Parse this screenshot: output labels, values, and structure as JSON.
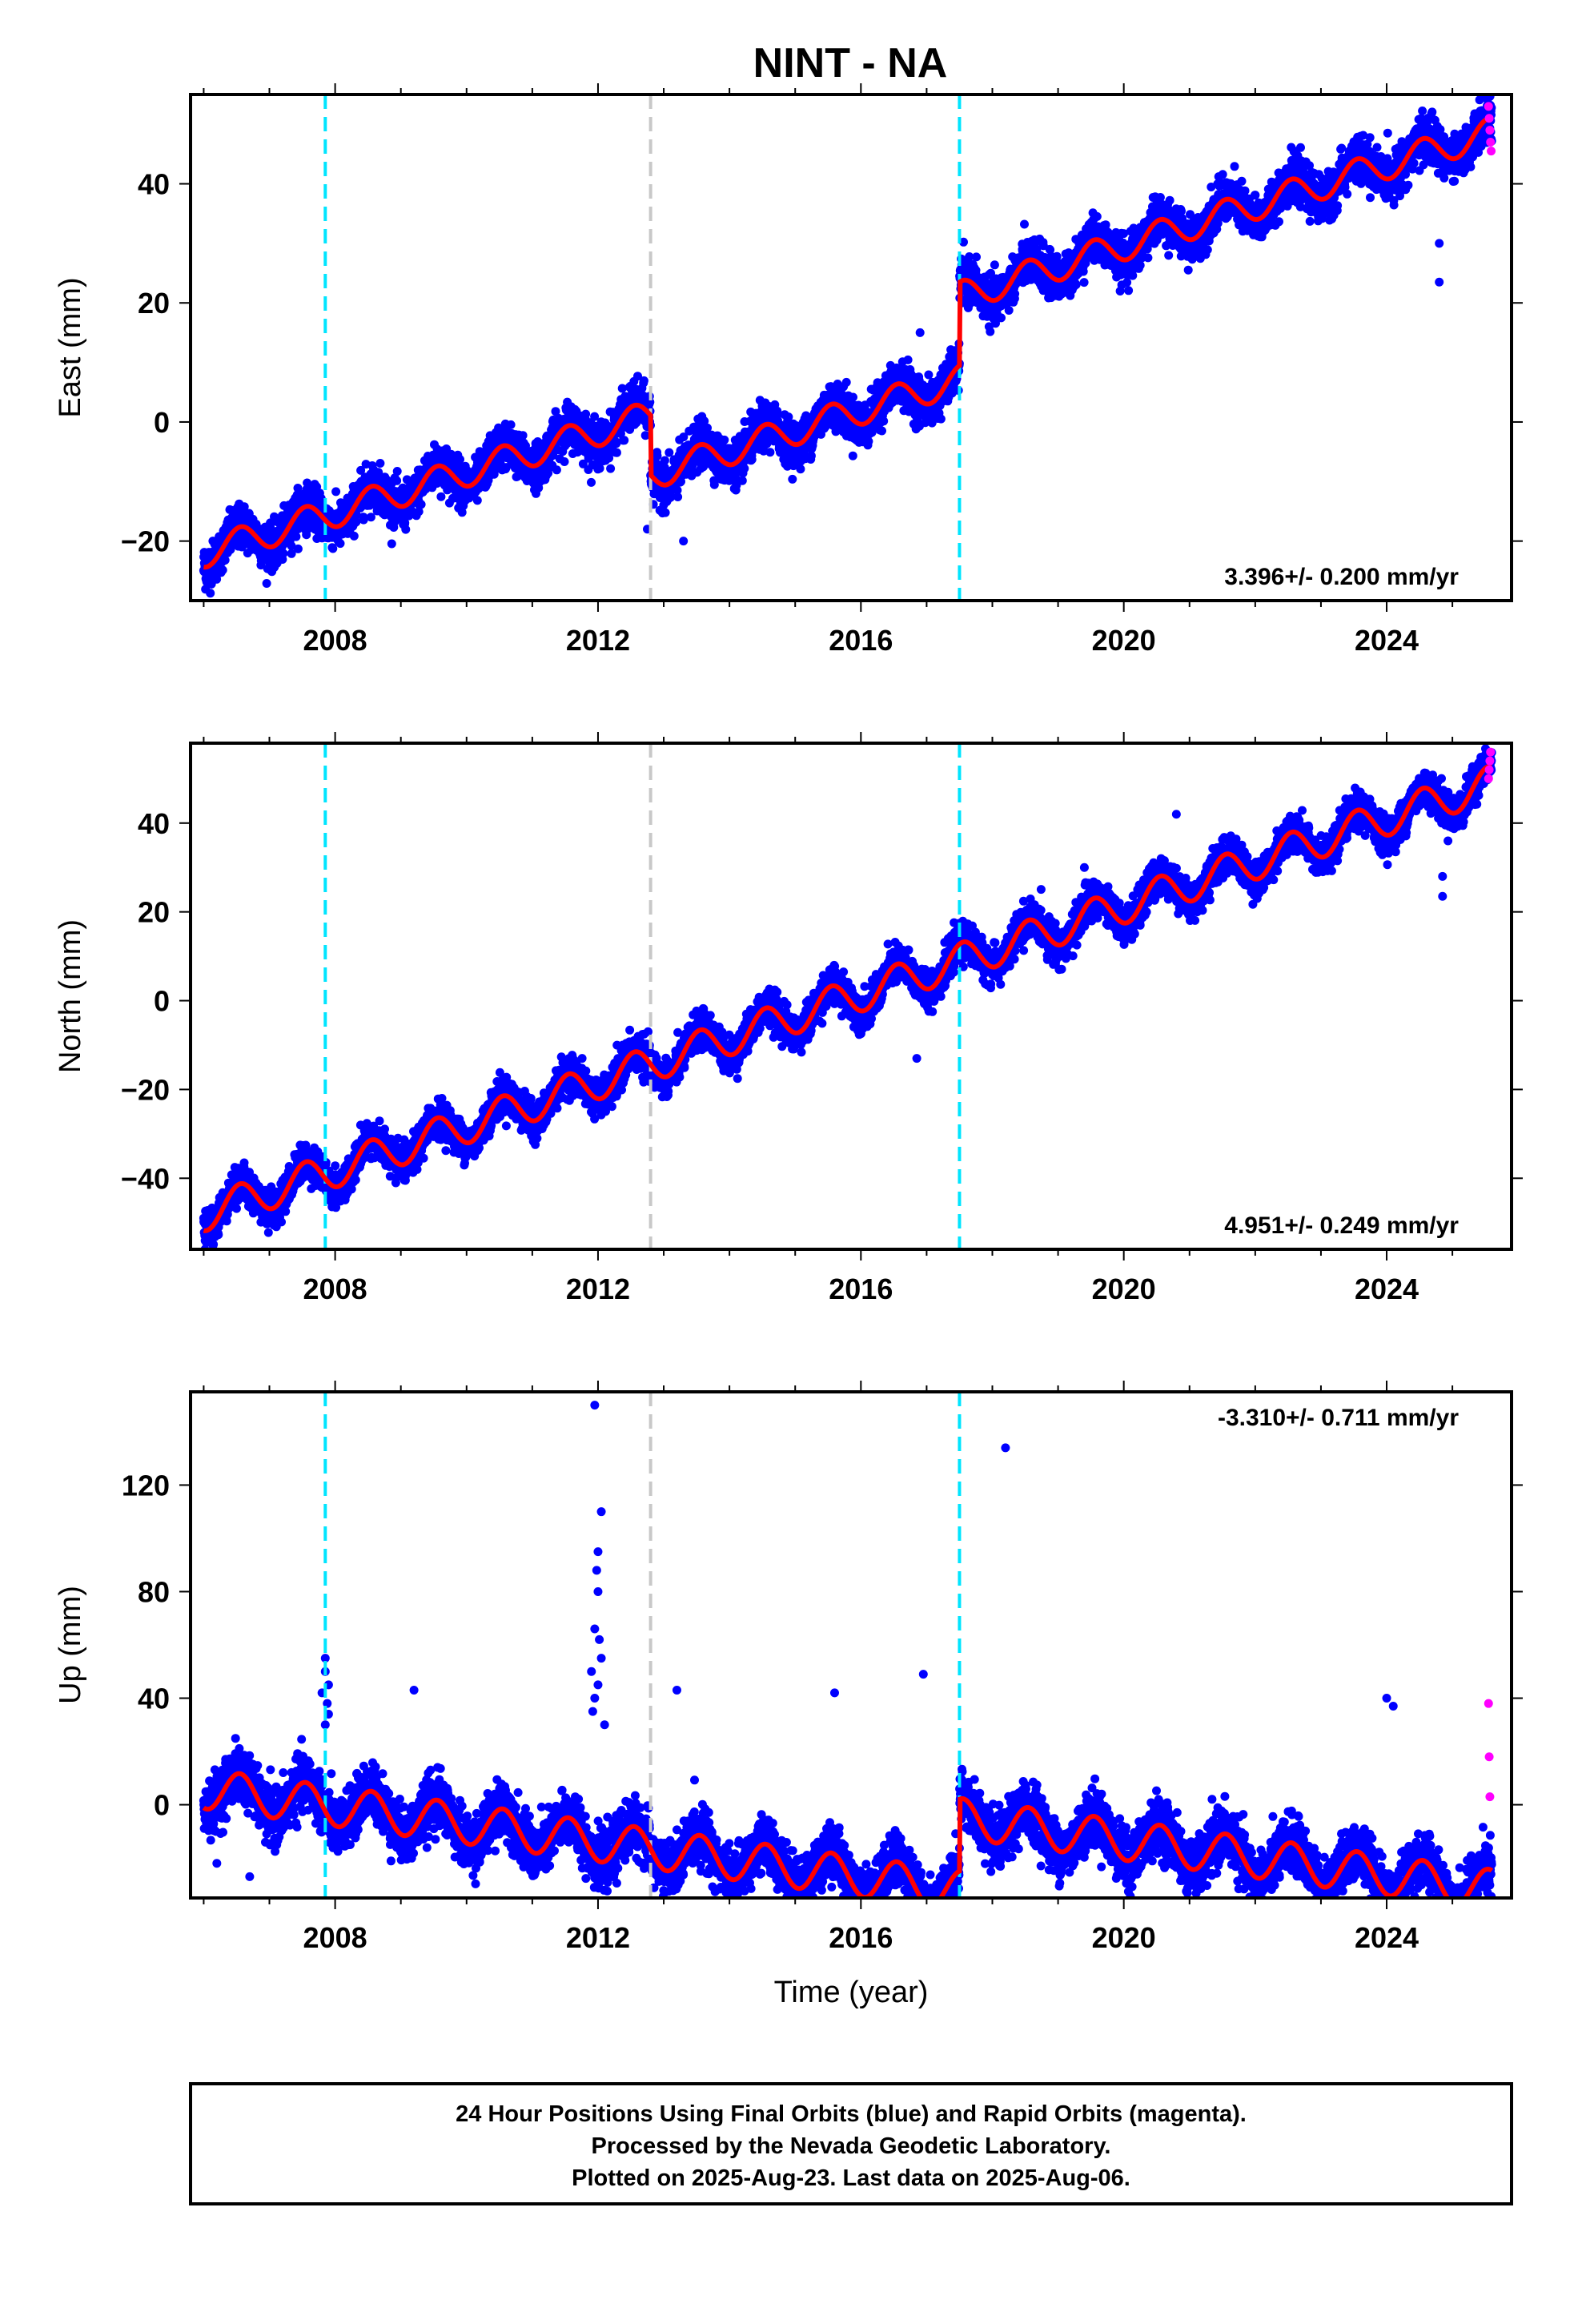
{
  "title": "NINT - NA",
  "footer": {
    "lines": [
      "24 Hour Positions Using Final Orbits (blue) and Rapid Orbits (magenta).",
      "Processed by the Nevada Geodetic Laboratory.",
      "Plotted on 2025-Aug-23. Last data on 2025-Aug-06."
    ]
  },
  "colors": {
    "final_orbits": "#0000ff",
    "rapid_orbits": "#ff00ff",
    "model_fit": "#ff0000",
    "equipment_change": "#00e5ff",
    "earthquake": "#c8c8c8"
  },
  "chart_data": [
    {
      "type": "scatter",
      "component": "east",
      "ylabel": "East (mm)",
      "xlabel": "",
      "xlim": [
        2005.8,
        2025.9
      ],
      "ylim": [
        -30,
        55
      ],
      "xticks": [
        2008,
        2012,
        2016,
        2020,
        2024
      ],
      "yticks": [
        -20,
        0,
        20,
        40
      ],
      "rate_label": "3.396+/- 0.200 mm/yr",
      "rate_position": "bottom-right",
      "vlines_cyan": [
        2007.85,
        2017.5
      ],
      "vlines_gray": [
        2012.8
      ],
      "model": {
        "t_start": 2006.0,
        "t_end": 2025.6,
        "rate": 3.4,
        "y_at_start": -22.0,
        "annual_amp": 2.5,
        "offsets": [
          {
            "t": 2012.8,
            "dy": -10.0
          },
          {
            "t": 2017.5,
            "dy": 14.0
          }
        ]
      },
      "scatter_sigma": 1.8,
      "outliers": [
        [
          2012.75,
          -18.0
        ],
        [
          2013.3,
          -20.0
        ],
        [
          2024.8,
          23.5
        ],
        [
          2024.8,
          30.0
        ],
        [
          2016.9,
          15.0
        ]
      ],
      "rapid_points": [
        [
          2025.55,
          53.0
        ],
        [
          2025.56,
          51.0
        ],
        [
          2025.57,
          49.0
        ],
        [
          2025.58,
          47.0
        ],
        [
          2025.59,
          45.5
        ]
      ],
      "grid": false
    },
    {
      "type": "scatter",
      "component": "north",
      "ylabel": "North (mm)",
      "xlabel": "",
      "xlim": [
        2005.8,
        2025.9
      ],
      "ylim": [
        -56,
        58
      ],
      "xticks": [
        2008,
        2012,
        2016,
        2020,
        2024
      ],
      "yticks": [
        -40,
        -20,
        0,
        20,
        40
      ],
      "rate_label": "4.951+/- 0.249 mm/yr",
      "rate_position": "bottom-right",
      "vlines_cyan": [
        2007.85,
        2017.5
      ],
      "vlines_gray": [
        2012.8
      ],
      "model": {
        "t_start": 2006.0,
        "t_end": 2025.6,
        "rate": 4.95,
        "y_at_start": -48.0,
        "annual_amp": 4.0,
        "offsets": []
      },
      "scatter_sigma": 2.0,
      "outliers": [
        [
          2016.85,
          -13.0
        ],
        [
          2019.4,
          30.0
        ],
        [
          2020.8,
          42.0
        ],
        [
          2024.85,
          23.5
        ],
        [
          2024.85,
          28.0
        ]
      ],
      "rapid_points": [
        [
          2025.55,
          50.0
        ],
        [
          2025.56,
          52.0
        ],
        [
          2025.57,
          54.0
        ],
        [
          2025.58,
          56.0
        ]
      ],
      "grid": false
    },
    {
      "type": "scatter",
      "component": "up",
      "ylabel": "Up (mm)",
      "xlabel": "Time (year)",
      "xlim": [
        2005.8,
        2025.9
      ],
      "ylim": [
        -35,
        155
      ],
      "xticks": [
        2008,
        2012,
        2016,
        2020,
        2024
      ],
      "yticks": [
        0,
        40,
        80,
        120
      ],
      "rate_label": "-3.310+/- 0.711 mm/yr",
      "rate_position": "top-right",
      "vlines_cyan": [
        2007.85,
        2017.5
      ],
      "vlines_gray": [
        2012.8
      ],
      "model": {
        "t_start": 2006.0,
        "t_end": 2025.6,
        "rate": -3.31,
        "y_at_start": 6.0,
        "annual_amp": 7.5,
        "offsets": [
          {
            "t": 2017.5,
            "dy": 27.0
          }
        ]
      },
      "scatter_sigma": 5.0,
      "outliers": [
        [
          2011.95,
          150.0
        ],
        [
          2018.2,
          134.0
        ],
        [
          2012.05,
          110.0
        ],
        [
          2012.0,
          95.0
        ],
        [
          2011.98,
          88.0
        ],
        [
          2012.0,
          80.0
        ],
        [
          2011.95,
          66.0
        ],
        [
          2012.02,
          62.0
        ],
        [
          2012.05,
          55.0
        ],
        [
          2011.9,
          50.0
        ],
        [
          2012.0,
          45.0
        ],
        [
          2011.95,
          40.0
        ],
        [
          2011.92,
          35.0
        ],
        [
          2012.1,
          30.0
        ],
        [
          2007.85,
          55.0
        ],
        [
          2007.85,
          50.0
        ],
        [
          2007.9,
          45.0
        ],
        [
          2007.8,
          42.0
        ],
        [
          2007.88,
          38.0
        ],
        [
          2007.9,
          34.0
        ],
        [
          2007.85,
          30.0
        ],
        [
          2009.2,
          43.0
        ],
        [
          2013.2,
          43.0
        ],
        [
          2015.6,
          42.0
        ],
        [
          2016.95,
          49.0
        ],
        [
          2024.0,
          40.0
        ],
        [
          2024.1,
          37.0
        ],
        [
          2006.2,
          -22.0
        ],
        [
          2006.7,
          -27.0
        ],
        [
          2017.2,
          -34.0
        ],
        [
          2017.15,
          -30.0
        ],
        [
          2023.0,
          -32.0
        ]
      ],
      "rapid_points": [
        [
          2025.55,
          38.0
        ],
        [
          2025.56,
          18.0
        ],
        [
          2025.57,
          3.0
        ]
      ],
      "grid": false
    }
  ]
}
